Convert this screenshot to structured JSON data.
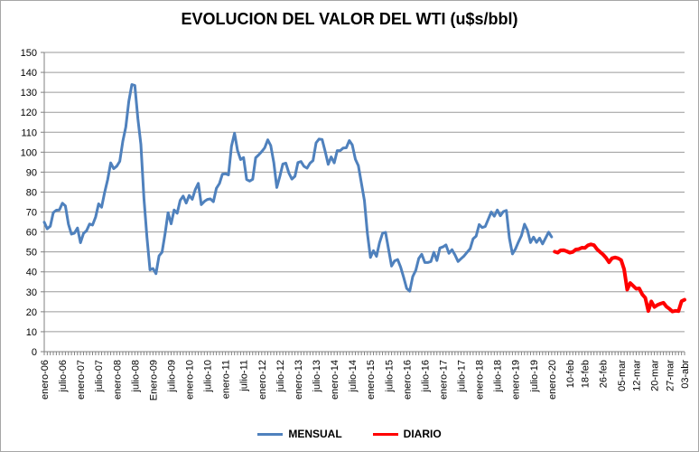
{
  "title": "EVOLUCION DEL VALOR DEL WTI (u$s/bbl)",
  "legend": {
    "items": [
      {
        "label": "MENSUAL",
        "color": "#4F81BD"
      },
      {
        "label": "DIARIO",
        "color": "#FF0000"
      }
    ]
  },
  "chart_data": {
    "type": "line",
    "title": "EVOLUCION DEL VALOR DEL WTI (u$s/bbl)",
    "xlabel": "",
    "ylabel": "",
    "ylim": [
      0,
      150
    ],
    "ytick_step": 10,
    "grid": true,
    "legend_position": "bottom-center",
    "categories_total": 213,
    "colors": {
      "mensual": "#4F81BD",
      "diario": "#FF0000",
      "gridline": "#9a9a9a",
      "axis": "#808080",
      "text": "#000000"
    },
    "x_ticks": [
      {
        "label": "enero-06",
        "i": 0
      },
      {
        "label": "julio-06",
        "i": 6
      },
      {
        "label": "enero-07",
        "i": 12
      },
      {
        "label": "julio-07",
        "i": 18
      },
      {
        "label": "enero-08",
        "i": 24
      },
      {
        "label": "julio-08",
        "i": 30
      },
      {
        "label": "Enero-09",
        "i": 36
      },
      {
        "label": "julio-09",
        "i": 42
      },
      {
        "label": "enero-10",
        "i": 48
      },
      {
        "label": "julio-10",
        "i": 54
      },
      {
        "label": "enero-11",
        "i": 60
      },
      {
        "label": "julio-11",
        "i": 66
      },
      {
        "label": "enero-12",
        "i": 72
      },
      {
        "label": "julio-12",
        "i": 78
      },
      {
        "label": "enero-13",
        "i": 84
      },
      {
        "label": "julio-13",
        "i": 90
      },
      {
        "label": "enero-14",
        "i": 96
      },
      {
        "label": "julio-14",
        "i": 102
      },
      {
        "label": "enero-15",
        "i": 108
      },
      {
        "label": "julio-15",
        "i": 114
      },
      {
        "label": "enero-16",
        "i": 120
      },
      {
        "label": "julio-16",
        "i": 126
      },
      {
        "label": "enero-17",
        "i": 132
      },
      {
        "label": "julio-17",
        "i": 138
      },
      {
        "label": "enero-18",
        "i": 144
      },
      {
        "label": "julio-18",
        "i": 150
      },
      {
        "label": "enero-19",
        "i": 156
      },
      {
        "label": "julio-19",
        "i": 162
      },
      {
        "label": "enero-20",
        "i": 168
      },
      {
        "label": "10-feb",
        "i": 174
      },
      {
        "label": "18-feb",
        "i": 179
      },
      {
        "label": "26-feb",
        "i": 185
      },
      {
        "label": "05-mar",
        "i": 191
      },
      {
        "label": "12-mar",
        "i": 196
      },
      {
        "label": "20-mar",
        "i": 202
      },
      {
        "label": "27-mar",
        "i": 207
      },
      {
        "label": "03-abr",
        "i": 212
      }
    ],
    "series": [
      {
        "name": "MENSUAL",
        "color": "#4F81BD",
        "start_index": 0,
        "values": [
          64.9,
          61.6,
          62.9,
          69.7,
          70.9,
          71.0,
          74.4,
          73.1,
          63.9,
          58.9,
          59.4,
          62.0,
          54.6,
          59.3,
          60.6,
          64.0,
          63.5,
          67.5,
          74.1,
          72.4,
          79.9,
          86.2,
          94.6,
          91.7,
          93.0,
          95.4,
          105.5,
          112.6,
          125.4,
          133.9,
          133.4,
          116.7,
          103.9,
          76.7,
          57.4,
          41.0,
          41.7,
          39.1,
          48.0,
          49.8,
          59.2,
          69.7,
          64.1,
          71.0,
          69.4,
          75.8,
          78.0,
          74.5,
          78.3,
          76.4,
          81.2,
          84.4,
          73.7,
          75.3,
          76.3,
          76.6,
          75.2,
          81.9,
          84.3,
          89.0,
          89.2,
          88.6,
          102.9,
          109.5,
          100.9,
          96.3,
          97.3,
          86.3,
          85.5,
          86.4,
          97.2,
          98.6,
          100.3,
          102.2,
          106.2,
          103.3,
          94.7,
          82.3,
          87.9,
          94.1,
          94.5,
          89.5,
          86.5,
          87.9,
          94.8,
          95.3,
          92.9,
          92.0,
          94.5,
          95.8,
          104.7,
          106.6,
          106.3,
          100.5,
          93.9,
          97.6,
          94.6,
          100.8,
          100.8,
          102.1,
          102.2,
          105.8,
          103.6,
          96.5,
          93.2,
          84.4,
          75.8,
          59.3,
          47.2,
          50.6,
          47.8,
          54.5,
          59.3,
          59.8,
          51.2,
          42.9,
          45.5,
          46.2,
          42.4,
          37.2,
          31.7,
          30.3,
          37.6,
          40.8,
          46.7,
          48.8,
          44.7,
          44.7,
          45.2,
          49.8,
          45.7,
          52.0,
          52.5,
          53.5,
          49.3,
          51.1,
          48.5,
          45.2,
          46.6,
          48.0,
          49.8,
          51.6,
          56.6,
          57.9,
          63.7,
          62.2,
          62.7,
          66.3,
          70.0,
          67.9,
          71.0,
          68.1,
          70.2,
          70.8,
          57.0,
          49.0,
          51.4,
          55.0,
          58.2,
          63.9,
          60.8,
          54.7,
          57.4,
          54.8,
          56.9,
          54.0,
          57.0,
          59.9,
          57.5
        ]
      },
      {
        "name": "DIARIO",
        "color": "#FF0000",
        "start_index": 169,
        "values": [
          50.1,
          49.6,
          50.8,
          50.9,
          50.3,
          49.6,
          50.0,
          51.2,
          51.4,
          52.1,
          52.0,
          53.3,
          53.8,
          53.4,
          51.4,
          50.0,
          48.7,
          47.1,
          44.8,
          46.8,
          47.2,
          46.8,
          45.9,
          41.3,
          31.1,
          34.4,
          33.0,
          31.5,
          31.7,
          28.7,
          27.0,
          20.4,
          25.2,
          22.4,
          23.4,
          24.0,
          24.5,
          22.6,
          21.5,
          20.1,
          20.5,
          20.3,
          25.3,
          26.0
        ]
      }
    ]
  }
}
